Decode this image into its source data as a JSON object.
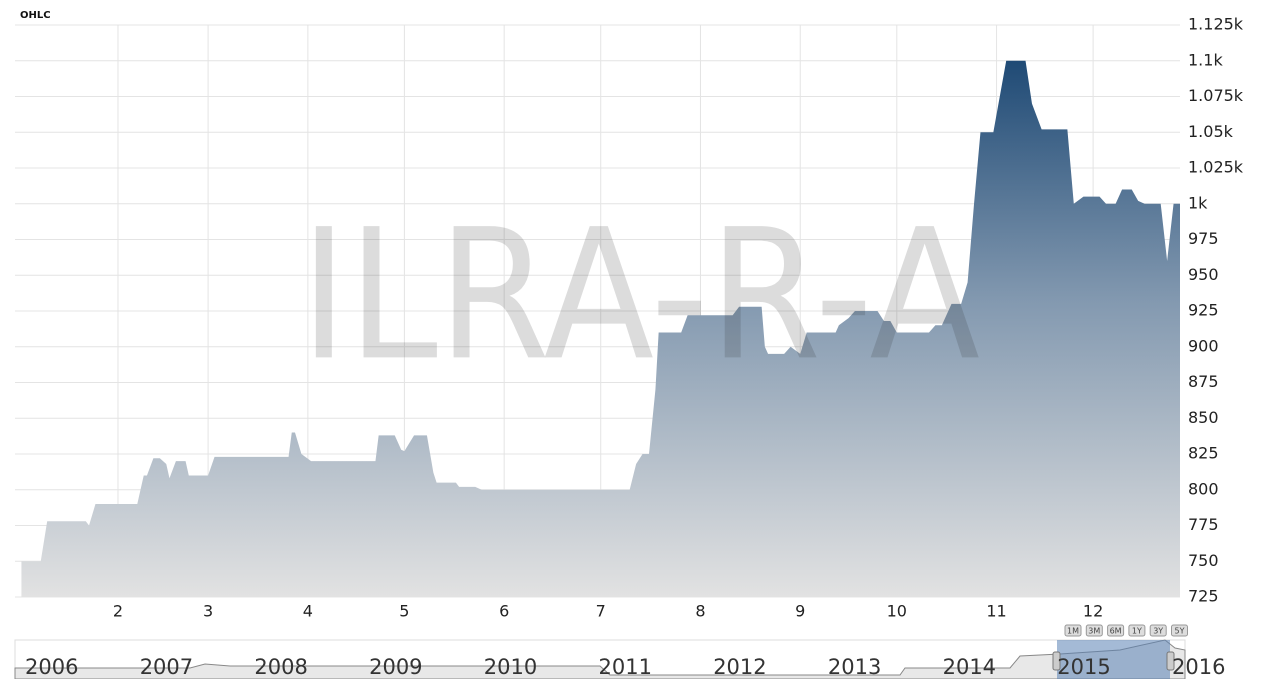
{
  "chart_data": {
    "type": "area",
    "title": "OHLC",
    "watermark": "ILRA-R-A",
    "color": "#1f4a75",
    "x": [
      2,
      8,
      10,
      22,
      23,
      25,
      38,
      40,
      41,
      43,
      45,
      47,
      48,
      50,
      53,
      54,
      60,
      62,
      85,
      86,
      87,
      89,
      92,
      112,
      113,
      118,
      120,
      121,
      124,
      128,
      130,
      131,
      137,
      138,
      143,
      145,
      191,
      193,
      195,
      197,
      199,
      200,
      207,
      209,
      223,
      225,
      232,
      233,
      234,
      239,
      241,
      244,
      246,
      255,
      256,
      259,
      261,
      268,
      270,
      272,
      274,
      284,
      286,
      288,
      291,
      294,
      296,
      298,
      300,
      304,
      308,
      314,
      316,
      319,
      327,
      329,
      332,
      337,
      339,
      342,
      344,
      347,
      349,
      351,
      356,
      358,
      360,
      362
    ],
    "values": [
      750,
      750,
      778,
      778,
      775,
      790,
      790,
      810,
      810,
      822,
      822,
      818,
      808,
      820,
      820,
      810,
      810,
      823,
      823,
      840,
      840,
      825,
      820,
      820,
      838,
      838,
      828,
      827,
      838,
      838,
      812,
      805,
      805,
      802,
      802,
      800,
      800,
      818,
      825,
      825,
      870,
      910,
      910,
      922,
      922,
      928,
      928,
      900,
      895,
      895,
      900,
      895,
      910,
      910,
      915,
      920,
      925,
      925,
      918,
      918,
      910,
      910,
      915,
      915,
      930,
      930,
      945,
      1000,
      1050,
      1050,
      1100,
      1100,
      1070,
      1052,
      1052,
      1000,
      1005,
      1005,
      1000,
      1000,
      1010,
      1010,
      1002,
      1000,
      1000,
      960,
      1000,
      1000
    ],
    "xlim": [
      0,
      362
    ],
    "xticks": [
      {
        "value": 32,
        "label": "2"
      },
      {
        "value": 60,
        "label": "3"
      },
      {
        "value": 91,
        "label": "4"
      },
      {
        "value": 121,
        "label": "5"
      },
      {
        "value": 152,
        "label": "6"
      },
      {
        "value": 182,
        "label": "7"
      },
      {
        "value": 213,
        "label": "8"
      },
      {
        "value": 244,
        "label": "9"
      },
      {
        "value": 274,
        "label": "10"
      },
      {
        "value": 305,
        "label": "11"
      },
      {
        "value": 335,
        "label": "12"
      }
    ],
    "ylim": [
      725,
      1125
    ],
    "yticks": [
      725,
      750,
      775,
      800,
      825,
      850,
      875,
      900,
      925,
      950,
      975,
      {
        "value": 1000,
        "label": "1k"
      },
      {
        "value": 1025,
        "label": "1.025k"
      },
      {
        "value": 1050,
        "label": "1.05k"
      },
      {
        "value": 1075,
        "label": "1.075k"
      },
      {
        "value": 1100,
        "label": "1.1k"
      },
      {
        "value": 1125,
        "label": "1.125k"
      }
    ],
    "grid": true,
    "navigator": {
      "years": [
        "2006",
        "2007",
        "2008",
        "2009",
        "2010",
        "2011",
        "2012",
        "2013",
        "2014",
        "2015",
        "2016"
      ],
      "buttons": [
        "1M",
        "3M",
        "6M",
        "1Y",
        "3Y",
        "5Y"
      ]
    }
  }
}
